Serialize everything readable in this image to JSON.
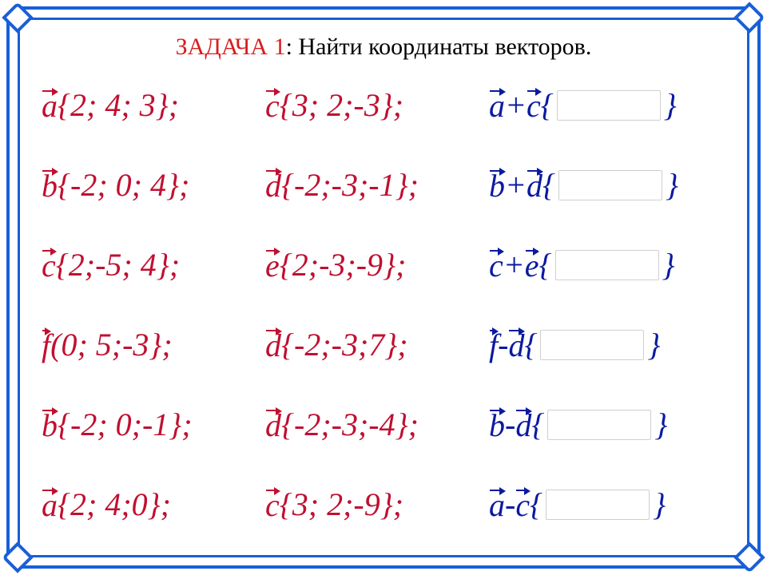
{
  "frame_color": "#1a5fd6",
  "title_accent_color": "#d81e1e",
  "left_color": "#c01030",
  "right_color": "#0a1aa0",
  "blank_border": "#cfcfcf",
  "background": "#ffffff",
  "font_size_title": 30,
  "font_size_row": 40,
  "title": {
    "accent": "ЗАДАЧА 1",
    "rest": ": Найти координаты  векторов."
  },
  "rows": [
    {
      "v1": "a",
      "c1": " {2; 4; 3};",
      "v2": "c",
      "c2": " {3; 2;-3};",
      "r_pre_v1": "a",
      "r_mid": " +",
      "r_pre_v2": "c",
      "r_open": " {",
      "r_close": "}"
    },
    {
      "v1": "b",
      "c1": "{-2; 0; 4};",
      "v2": "d",
      "c2": "{-2;-3;-1};",
      "r_pre_v1": "b",
      "r_mid": "+",
      "r_pre_v2": "d",
      "r_open": "{",
      "r_close": "}"
    },
    {
      "v1": "c",
      "c1": " {2;-5; 4};",
      "v2": "e",
      "c2": " {2;-3;-9};",
      "r_pre_v1": "c",
      "r_mid": " +",
      "r_pre_v2": "e",
      "r_open": "{",
      "r_close": "}"
    },
    {
      "v1": "f",
      "c1": "(0; 5;-3};",
      "v2": "d",
      "c2": "{-2;-3;7};",
      "r_pre_v1": "f",
      "r_mid": " - ",
      "r_pre_v2": "d",
      "r_open": "{",
      "r_close": "}"
    },
    {
      "v1": "b",
      "c1": "{-2; 0;-1};",
      "v2": "d",
      "c2": "{-2;-3;-4};",
      "r_pre_v1": "b",
      "r_mid": " - ",
      "r_pre_v2": "d",
      "r_open": "{",
      "r_close": "}"
    },
    {
      "v1": "a",
      "c1": " {2; 4;0};",
      "v2": "c",
      "c2": " {3; 2;-9};",
      "r_pre_v1": "a",
      "r_mid": " - ",
      "r_pre_v2": "c",
      "r_open": "{",
      "r_close": "}"
    }
  ]
}
